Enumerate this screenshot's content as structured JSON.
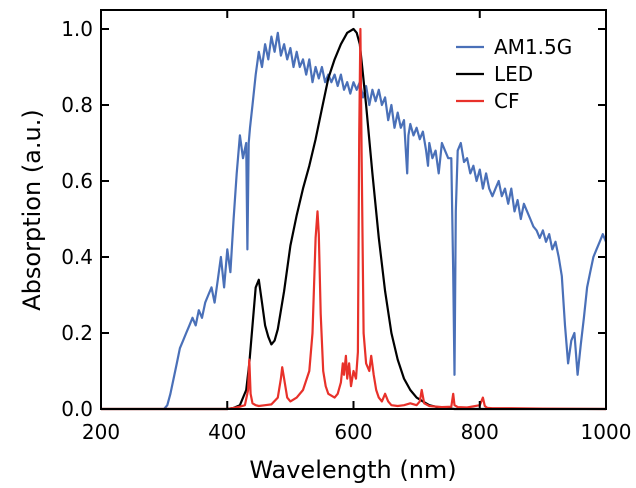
{
  "chart_data": {
    "type": "line",
    "title": "",
    "xlabel": "Wavelength (nm)",
    "ylabel": "Absorption (a.u.)",
    "xlim": [
      200,
      1000
    ],
    "ylim": [
      0,
      1.05
    ],
    "x_ticks": [
      200,
      400,
      600,
      800,
      1000
    ],
    "x_tick_labels": [
      "200",
      "400",
      "600",
      "800",
      "1000"
    ],
    "y_ticks": [
      0,
      0.2,
      0.4,
      0.6,
      0.8,
      1.0
    ],
    "y_tick_labels": [
      "0.0",
      "0.2",
      "0.4",
      "0.6",
      "0.8",
      "1.0"
    ],
    "grid": false,
    "legend_position": "top-right",
    "series": [
      {
        "name": "AM1.5G",
        "color": "#4a70b8",
        "x": [
          300,
          305,
          310,
          315,
          320,
          325,
          330,
          335,
          340,
          345,
          350,
          355,
          360,
          365,
          370,
          375,
          380,
          385,
          390,
          395,
          400,
          405,
          410,
          415,
          420,
          425,
          430,
          432,
          434,
          436,
          440,
          445,
          450,
          455,
          460,
          465,
          470,
          475,
          480,
          485,
          490,
          495,
          500,
          505,
          510,
          515,
          520,
          525,
          530,
          535,
          540,
          545,
          550,
          555,
          560,
          565,
          570,
          575,
          580,
          585,
          590,
          595,
          600,
          605,
          610,
          615,
          620,
          625,
          630,
          635,
          640,
          645,
          650,
          655,
          660,
          665,
          670,
          675,
          680,
          685,
          687,
          690,
          695,
          700,
          705,
          710,
          715,
          718,
          720,
          725,
          730,
          735,
          740,
          745,
          750,
          755,
          758,
          760,
          762,
          765,
          770,
          775,
          780,
          785,
          790,
          795,
          800,
          805,
          810,
          815,
          820,
          825,
          830,
          835,
          840,
          845,
          850,
          855,
          860,
          865,
          870,
          875,
          880,
          885,
          890,
          895,
          900,
          905,
          910,
          915,
          920,
          925,
          930,
          935,
          940,
          945,
          950,
          955,
          960,
          965,
          970,
          975,
          980,
          985,
          990,
          995,
          1000
        ],
        "values": [
          0.0,
          0.01,
          0.04,
          0.08,
          0.12,
          0.16,
          0.18,
          0.2,
          0.22,
          0.24,
          0.22,
          0.26,
          0.24,
          0.28,
          0.3,
          0.32,
          0.28,
          0.34,
          0.4,
          0.32,
          0.42,
          0.36,
          0.5,
          0.62,
          0.72,
          0.66,
          0.7,
          0.42,
          0.7,
          0.74,
          0.8,
          0.88,
          0.94,
          0.9,
          0.96,
          0.92,
          0.98,
          0.94,
          0.99,
          0.93,
          0.96,
          0.92,
          0.95,
          0.9,
          0.94,
          0.9,
          0.92,
          0.88,
          0.92,
          0.86,
          0.9,
          0.87,
          0.9,
          0.86,
          0.88,
          0.86,
          0.88,
          0.85,
          0.88,
          0.84,
          0.86,
          0.83,
          0.86,
          0.84,
          0.86,
          0.82,
          0.85,
          0.8,
          0.84,
          0.81,
          0.84,
          0.8,
          0.82,
          0.76,
          0.8,
          0.74,
          0.78,
          0.74,
          0.76,
          0.62,
          0.72,
          0.75,
          0.72,
          0.74,
          0.71,
          0.73,
          0.68,
          0.64,
          0.7,
          0.66,
          0.68,
          0.62,
          0.7,
          0.68,
          0.66,
          0.66,
          0.36,
          0.09,
          0.52,
          0.68,
          0.7,
          0.65,
          0.66,
          0.62,
          0.64,
          0.6,
          0.63,
          0.58,
          0.62,
          0.58,
          0.56,
          0.58,
          0.6,
          0.56,
          0.58,
          0.54,
          0.58,
          0.52,
          0.55,
          0.5,
          0.54,
          0.52,
          0.5,
          0.48,
          0.47,
          0.45,
          0.47,
          0.44,
          0.46,
          0.42,
          0.44,
          0.4,
          0.35,
          0.22,
          0.12,
          0.18,
          0.2,
          0.09,
          0.17,
          0.24,
          0.32,
          0.36,
          0.4,
          0.42,
          0.44,
          0.46,
          0.44
        ]
      },
      {
        "name": "LED",
        "color": "#000000",
        "x": [
          200,
          400,
          410,
          420,
          430,
          435,
          440,
          445,
          450,
          455,
          460,
          465,
          470,
          475,
          480,
          490,
          500,
          510,
          520,
          530,
          540,
          550,
          560,
          570,
          580,
          590,
          600,
          605,
          610,
          615,
          620,
          630,
          640,
          650,
          660,
          670,
          680,
          690,
          700,
          710,
          720,
          730,
          740,
          760,
          800,
          1000
        ],
        "values": [
          0.0,
          0.0,
          0.003,
          0.01,
          0.05,
          0.12,
          0.22,
          0.32,
          0.34,
          0.28,
          0.22,
          0.19,
          0.17,
          0.18,
          0.21,
          0.31,
          0.43,
          0.51,
          0.58,
          0.64,
          0.71,
          0.79,
          0.87,
          0.92,
          0.96,
          0.99,
          1.0,
          0.99,
          0.96,
          0.88,
          0.8,
          0.62,
          0.45,
          0.31,
          0.2,
          0.13,
          0.08,
          0.05,
          0.03,
          0.02,
          0.01,
          0.006,
          0.003,
          0.0,
          0.0,
          0.0
        ]
      },
      {
        "name": "CF",
        "color": "#e8312a",
        "x": [
          200,
          400,
          410,
          420,
          428,
          433,
          435,
          437,
          440,
          445,
          450,
          460,
          470,
          480,
          485,
          487,
          490,
          495,
          500,
          510,
          520,
          530,
          535,
          540,
          543,
          545,
          548,
          552,
          556,
          560,
          570,
          575,
          580,
          583,
          585,
          588,
          590,
          593,
          596,
          600,
          604,
          607,
          609,
          611,
          613,
          616,
          620,
          625,
          628,
          632,
          636,
          640,
          645,
          650,
          655,
          660,
          670,
          680,
          690,
          700,
          705,
          708,
          712,
          720,
          740,
          755,
          758,
          760,
          765,
          780,
          800,
          805,
          808,
          812,
          820,
          850,
          900,
          1000
        ],
        "values": [
          0.0,
          0.0,
          0.003,
          0.006,
          0.01,
          0.05,
          0.13,
          0.04,
          0.015,
          0.01,
          0.008,
          0.01,
          0.012,
          0.03,
          0.08,
          0.11,
          0.08,
          0.03,
          0.02,
          0.03,
          0.05,
          0.1,
          0.2,
          0.45,
          0.52,
          0.46,
          0.25,
          0.1,
          0.06,
          0.04,
          0.03,
          0.04,
          0.07,
          0.12,
          0.09,
          0.14,
          0.08,
          0.12,
          0.06,
          0.1,
          0.08,
          0.15,
          0.72,
          1.0,
          0.65,
          0.2,
          0.12,
          0.1,
          0.14,
          0.09,
          0.05,
          0.03,
          0.02,
          0.04,
          0.02,
          0.01,
          0.008,
          0.01,
          0.015,
          0.01,
          0.02,
          0.05,
          0.015,
          0.008,
          0.005,
          0.006,
          0.04,
          0.01,
          0.005,
          0.004,
          0.01,
          0.03,
          0.008,
          0.003,
          0.002,
          0.002,
          0.001,
          0.0
        ]
      }
    ]
  }
}
